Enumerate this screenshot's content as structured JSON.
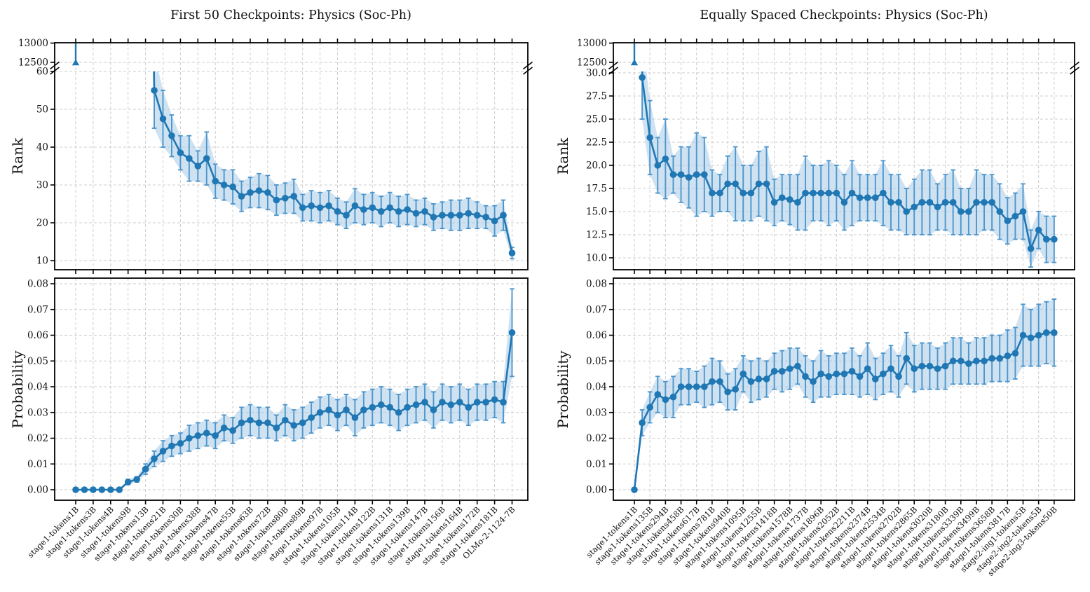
{
  "figure": {
    "background": "#ffffff",
    "colors": {
      "line": "#1f77b4",
      "marker": "#1f77b4",
      "errorbar": "#4e96cb",
      "band": "#a8cbe8",
      "grid": "#cdcdcd",
      "spine": "#000000"
    }
  },
  "chart_data": [
    {
      "id": "first-50-checkpoints",
      "type": "line",
      "title": "First 50 Checkpoints: Physics (Soc-Ph)",
      "x_axis": {
        "label_every_n_points": 2,
        "tick_labels": [
          "stage1-tokens1B",
          "stage1-tokens3B",
          "stage1-tokens4B",
          "stage1-tokens9B",
          "stage1-tokens13B",
          "stage1-tokens21B",
          "stage1-tokens30B",
          "stage1-tokens38B",
          "stage1-tokens47B",
          "stage1-tokens55B",
          "stage1-tokens63B",
          "stage1-tokens72B",
          "stage1-tokens80B",
          "stage1-tokens89B",
          "stage1-tokens97B",
          "stage1-tokens105B",
          "stage1-tokens114B",
          "stage1-tokens122B",
          "stage1-tokens131B",
          "stage1-tokens139B",
          "stage1-tokens147B",
          "stage1-tokens156B",
          "stage1-tokens164B",
          "stage1-tokens172B",
          "stage1-tokens181B",
          "OLMo-2-1124-7B"
        ]
      },
      "rank_panel": {
        "ylabel": "Rank",
        "broken_axis": true,
        "top_ticks": [
          13000,
          12500
        ],
        "top_tick_labels": [
          "13000",
          "12500"
        ],
        "main_ticks": [
          60,
          50,
          40,
          30,
          20,
          10
        ],
        "main_tick_labels": [
          "60",
          "50",
          "40",
          "30",
          "20",
          "10"
        ],
        "values": [
          12500,
          null,
          null,
          null,
          null,
          null,
          null,
          null,
          200,
          55,
          47.5,
          43,
          38.5,
          37,
          35,
          37,
          31,
          30,
          29.5,
          27,
          28,
          28.5,
          28,
          26,
          26.5,
          27,
          24,
          24.5,
          24,
          24.5,
          23,
          22,
          24.5,
          23.5,
          24,
          23,
          24,
          23,
          23.5,
          22.5,
          23,
          21.5,
          22,
          22,
          22,
          22.5,
          22,
          21.5,
          20.5,
          22,
          12
        ],
        "err": [
          600,
          null,
          null,
          null,
          null,
          null,
          null,
          null,
          40,
          10,
          7.5,
          5.5,
          4.5,
          6,
          4,
          7,
          4.5,
          4,
          4.5,
          4,
          4,
          4.5,
          4.5,
          4,
          4,
          4.5,
          3.5,
          4,
          4,
          4,
          3.5,
          3.5,
          4.5,
          4,
          4,
          4,
          4,
          4,
          4,
          3.5,
          3.5,
          3.5,
          3.5,
          4,
          4,
          4,
          3.5,
          3,
          4,
          4,
          1.5
        ]
      },
      "prob_panel": {
        "ylabel": "Probability",
        "ticks": [
          0.08,
          0.07,
          0.06,
          0.05,
          0.04,
          0.03,
          0.02,
          0.01,
          0.0
        ],
        "tick_labels": [
          "0.08",
          "0.07",
          "0.06",
          "0.05",
          "0.04",
          "0.03",
          "0.02",
          "0.01",
          "0.00"
        ],
        "values": [
          0,
          0,
          0,
          0,
          0,
          0,
          0.003,
          0.004,
          0.008,
          0.012,
          0.015,
          0.017,
          0.018,
          0.02,
          0.021,
          0.022,
          0.021,
          0.024,
          0.023,
          0.026,
          0.027,
          0.026,
          0.026,
          0.024,
          0.027,
          0.025,
          0.026,
          0.028,
          0.03,
          0.031,
          0.029,
          0.031,
          0.028,
          0.031,
          0.032,
          0.033,
          0.032,
          0.03,
          0.032,
          0.033,
          0.034,
          0.031,
          0.034,
          0.033,
          0.034,
          0.032,
          0.034,
          0.034,
          0.035,
          0.034,
          0.061
        ],
        "err": [
          0,
          0,
          0,
          0,
          0,
          0,
          0.001,
          0.001,
          0.002,
          0.003,
          0.004,
          0.004,
          0.004,
          0.005,
          0.005,
          0.005,
          0.005,
          0.005,
          0.005,
          0.006,
          0.006,
          0.006,
          0.006,
          0.005,
          0.006,
          0.006,
          0.006,
          0.006,
          0.006,
          0.006,
          0.006,
          0.006,
          0.007,
          0.007,
          0.007,
          0.007,
          0.007,
          0.007,
          0.007,
          0.007,
          0.007,
          0.007,
          0.007,
          0.007,
          0.007,
          0.007,
          0.007,
          0.007,
          0.007,
          0.008,
          0.017
        ]
      }
    },
    {
      "id": "equally-spaced-checkpoints",
      "type": "line",
      "title": "Equally Spaced Checkpoints: Physics (Soc-Ph)",
      "x_axis": {
        "label_every_n_points": 2,
        "tick_labels": [
          "stage1-tokens1B",
          "stage1-tokens135B",
          "stage1-tokens294B",
          "stage1-tokens458B",
          "stage1-tokens617B",
          "stage1-tokens781B",
          "stage1-tokens940B",
          "stage1-tokens1095B",
          "stage1-tokens1255B",
          "stage1-tokens1418B",
          "stage1-tokens1578B",
          "stage1-tokens1737B",
          "stage1-tokens1896B",
          "stage1-tokens2052B",
          "stage1-tokens2211B",
          "stage1-tokens2374B",
          "stage1-tokens2534B",
          "stage1-tokens2702B",
          "stage1-tokens2865B",
          "stage1-tokens3020B",
          "stage1-tokens3180B",
          "stage1-tokens3339B",
          "stage1-tokens3499B",
          "stage1-tokens3658B",
          "stage1-tokens3817B",
          "stage2-ing1-tokens5B",
          "stage2-ing2-tokens5B",
          "stage2-ing3-tokens50B"
        ]
      },
      "rank_panel": {
        "ylabel": "Rank",
        "broken_axis": true,
        "top_ticks": [
          13000,
          12500
        ],
        "top_tick_labels": [
          "13000",
          "12500"
        ],
        "main_ticks": [
          30,
          27.5,
          25,
          22.5,
          20,
          17.5,
          15,
          12.5,
          10
        ],
        "main_tick_labels": [
          "30.0",
          "27.5",
          "25.0",
          "22.5",
          "20.0",
          "17.5",
          "15.0",
          "12.5",
          "10.0"
        ],
        "values": [
          12500,
          29.5,
          23,
          20,
          20.7,
          19,
          19,
          18.7,
          19,
          19,
          17,
          17,
          18,
          18,
          17,
          17,
          18,
          18,
          16,
          16.5,
          16.3,
          16,
          17,
          17,
          17,
          17,
          17,
          16,
          17,
          16.5,
          16.5,
          16.5,
          17,
          16,
          16,
          15,
          15.5,
          16,
          16,
          15.5,
          16,
          16,
          15,
          15,
          16,
          16,
          16,
          15,
          14,
          14.5,
          15,
          11,
          13,
          12,
          12
        ],
        "err": [
          600,
          4.5,
          4,
          3,
          4.3,
          2,
          3,
          3.3,
          4.5,
          4,
          2.5,
          2,
          3,
          4,
          3,
          3,
          3.5,
          4,
          2.5,
          2.5,
          2.7,
          3,
          4,
          3,
          3,
          3.5,
          3,
          3,
          3.5,
          2.5,
          2.5,
          2.5,
          3.5,
          3,
          3,
          2.5,
          3,
          3.5,
          3.5,
          2.5,
          3,
          3.5,
          2.5,
          2.5,
          3.5,
          3,
          3,
          3,
          2.5,
          2.5,
          3,
          2,
          2,
          2.5,
          2.5
        ]
      },
      "prob_panel": {
        "ylabel": "Probability",
        "ticks": [
          0.08,
          0.07,
          0.06,
          0.05,
          0.04,
          0.03,
          0.02,
          0.01,
          0.0
        ],
        "tick_labels": [
          "0.08",
          "0.07",
          "0.06",
          "0.05",
          "0.04",
          "0.03",
          "0.02",
          "0.01",
          "0.00"
        ],
        "values": [
          0,
          0.026,
          0.032,
          0.037,
          0.035,
          0.036,
          0.04,
          0.04,
          0.04,
          0.04,
          0.042,
          0.042,
          0.038,
          0.039,
          0.045,
          0.042,
          0.043,
          0.043,
          0.046,
          0.046,
          0.047,
          0.048,
          0.044,
          0.042,
          0.045,
          0.044,
          0.045,
          0.045,
          0.046,
          0.044,
          0.047,
          0.043,
          0.045,
          0.047,
          0.044,
          0.051,
          0.047,
          0.048,
          0.048,
          0.047,
          0.048,
          0.05,
          0.05,
          0.049,
          0.05,
          0.05,
          0.051,
          0.051,
          0.052,
          0.053,
          0.06,
          0.059,
          0.06,
          0.061,
          0.061
        ],
        "err": [
          0,
          0.005,
          0.006,
          0.007,
          0.007,
          0.008,
          0.007,
          0.007,
          0.006,
          0.008,
          0.009,
          0.008,
          0.007,
          0.008,
          0.007,
          0.008,
          0.008,
          0.007,
          0.007,
          0.008,
          0.008,
          0.007,
          0.008,
          0.008,
          0.009,
          0.008,
          0.008,
          0.008,
          0.009,
          0.008,
          0.01,
          0.008,
          0.008,
          0.009,
          0.008,
          0.01,
          0.009,
          0.009,
          0.009,
          0.008,
          0.009,
          0.009,
          0.009,
          0.008,
          0.009,
          0.009,
          0.009,
          0.009,
          0.01,
          0.01,
          0.012,
          0.011,
          0.012,
          0.012,
          0.013
        ]
      }
    }
  ]
}
